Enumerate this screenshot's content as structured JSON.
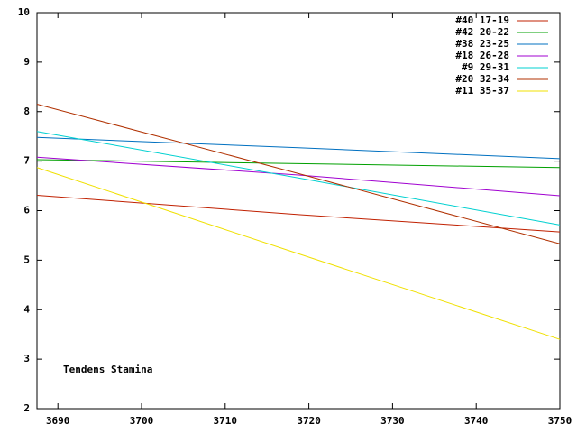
{
  "chart_data": {
    "type": "line",
    "annotation": "Tendens Stamina",
    "x": [
      3687.5,
      3718.75,
      3750
    ],
    "series": [
      {
        "name": "#40 17-19",
        "color": "#c02000",
        "values": [
          6.31,
          5.92,
          5.57
        ]
      },
      {
        "name": "#42 20-22",
        "color": "#00a000",
        "values": [
          7.03,
          6.95,
          6.87
        ]
      },
      {
        "name": "#38 23-25",
        "color": "#0070c0",
        "values": [
          7.48,
          7.27,
          7.05
        ]
      },
      {
        "name": "#18 26-28",
        "color": "#a000d0",
        "values": [
          7.08,
          6.72,
          6.3
        ]
      },
      {
        "name": "#9 29-31",
        "color": "#00d0d0",
        "values": [
          7.6,
          6.66,
          5.71
        ]
      },
      {
        "name": "#20 32-34",
        "color": "#b03000",
        "values": [
          8.15,
          6.75,
          5.33
        ]
      },
      {
        "name": "#11 35-37",
        "color": "#f0e000",
        "values": [
          6.87,
          5.13,
          3.4
        ]
      }
    ],
    "xlim": [
      3687.5,
      3750
    ],
    "xticks": [
      3690,
      3700,
      3710,
      3720,
      3730,
      3740,
      3750
    ],
    "ylim": [
      2,
      10
    ],
    "yticks": [
      2,
      3,
      4,
      5,
      6,
      7,
      8,
      9,
      10
    ],
    "grid": false,
    "legend": "top-right"
  }
}
